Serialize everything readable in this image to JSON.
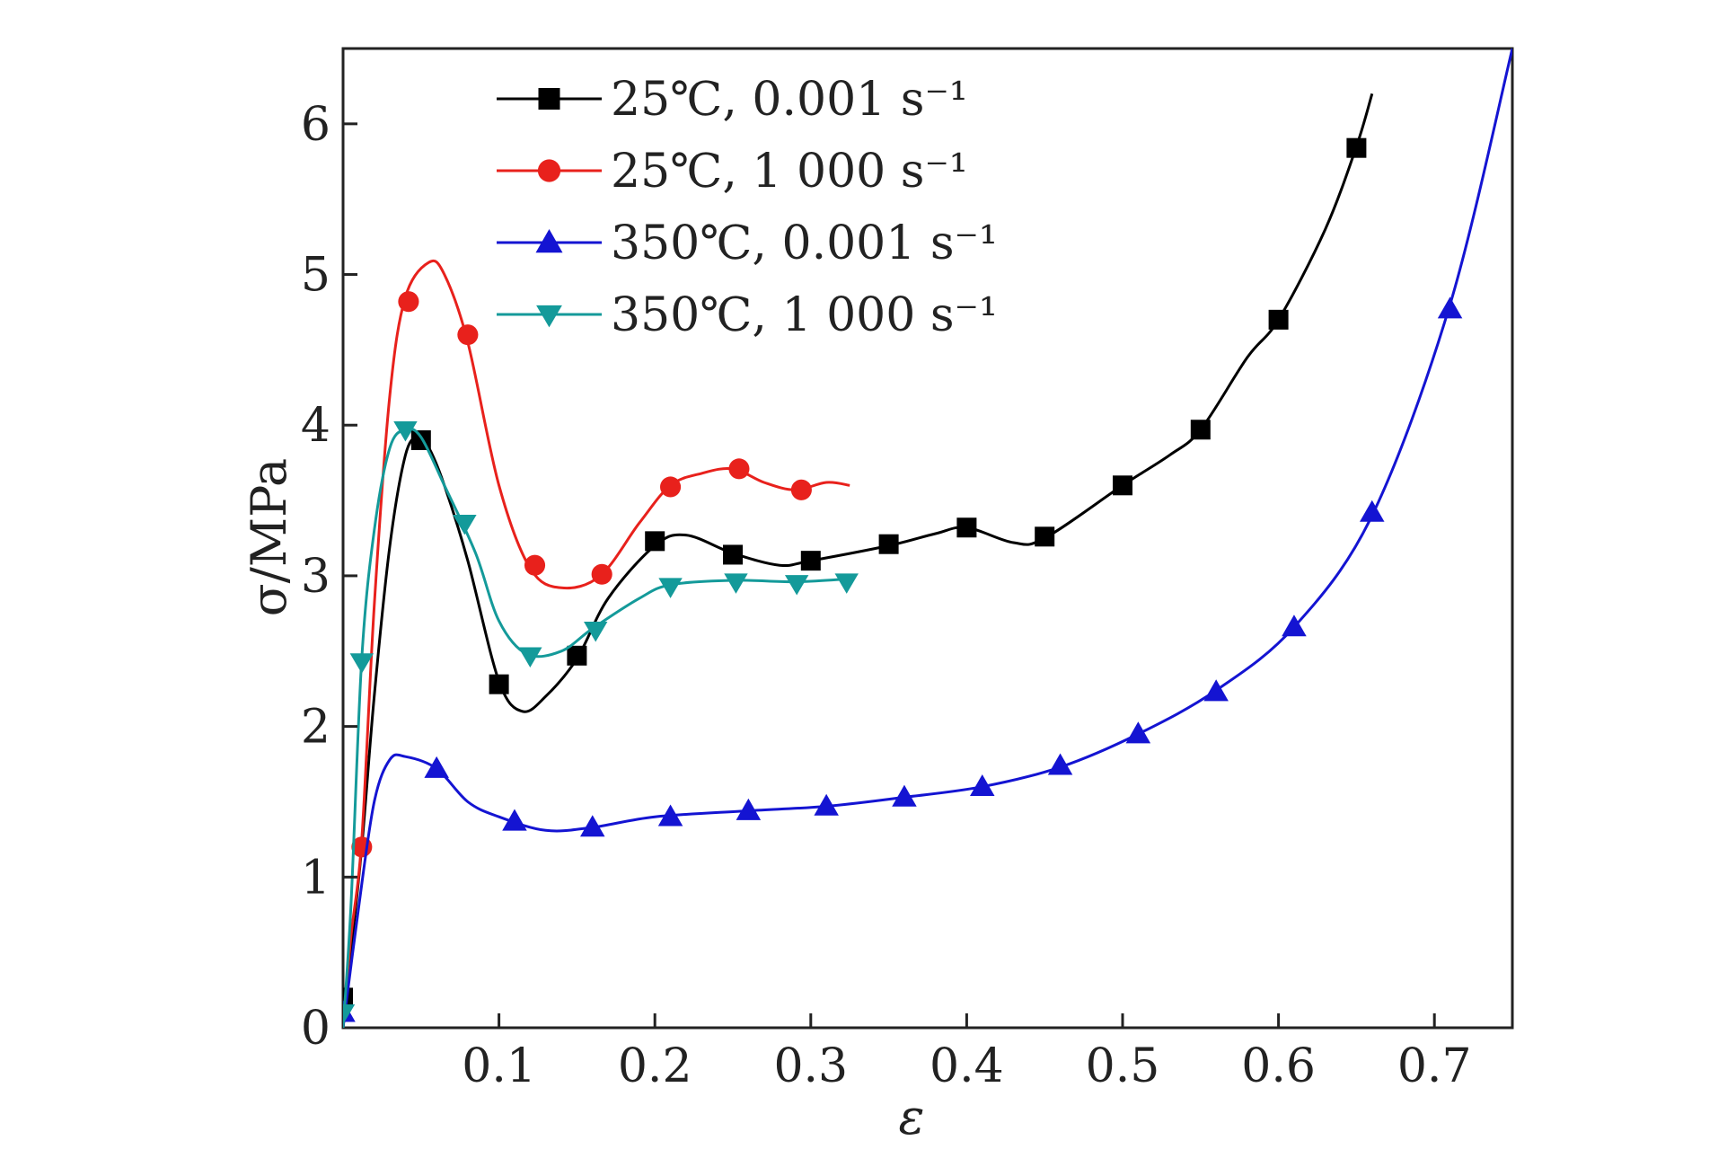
{
  "chart_data": {
    "type": "line",
    "xlabel": "ε",
    "ylabel": "σ/MPa",
    "xlim": [
      0,
      0.75
    ],
    "ylim": [
      0,
      6.5
    ],
    "x_ticks": [
      0.1,
      0.2,
      0.3,
      0.4,
      0.5,
      0.6,
      0.7
    ],
    "x_tick_labels": [
      "0.1",
      "0.2",
      "0.3",
      "0.4",
      "0.5",
      "0.6",
      "0.7"
    ],
    "y_ticks": [
      0,
      1,
      2,
      3,
      4,
      5,
      6
    ],
    "y_tick_labels": [
      "0",
      "1",
      "2",
      "3",
      "4",
      "5",
      "6"
    ],
    "grid": false,
    "legend_position": "top-center",
    "series": [
      {
        "name": "25℃, 0.001 s⁻¹",
        "color": "#000000",
        "marker": "square",
        "curve": [
          [
            0,
            0
          ],
          [
            0.005,
            0.5
          ],
          [
            0.012,
            1.2
          ],
          [
            0.02,
            2.2
          ],
          [
            0.03,
            3.2
          ],
          [
            0.04,
            3.8
          ],
          [
            0.048,
            3.92
          ],
          [
            0.055,
            3.85
          ],
          [
            0.065,
            3.6
          ],
          [
            0.08,
            3.1
          ],
          [
            0.1,
            2.3
          ],
          [
            0.115,
            2.1
          ],
          [
            0.13,
            2.2
          ],
          [
            0.15,
            2.45
          ],
          [
            0.17,
            2.85
          ],
          [
            0.2,
            3.2
          ],
          [
            0.22,
            3.27
          ],
          [
            0.25,
            3.15
          ],
          [
            0.28,
            3.07
          ],
          [
            0.3,
            3.1
          ],
          [
            0.35,
            3.2
          ],
          [
            0.38,
            3.28
          ],
          [
            0.4,
            3.32
          ],
          [
            0.43,
            3.22
          ],
          [
            0.45,
            3.25
          ],
          [
            0.5,
            3.6
          ],
          [
            0.53,
            3.8
          ],
          [
            0.55,
            3.97
          ],
          [
            0.58,
            4.45
          ],
          [
            0.6,
            4.7
          ],
          [
            0.63,
            5.3
          ],
          [
            0.65,
            5.85
          ],
          [
            0.66,
            6.2
          ]
        ],
        "markers": [
          [
            0,
            0.2
          ],
          [
            0.05,
            3.9
          ],
          [
            0.1,
            2.28
          ],
          [
            0.15,
            2.47
          ],
          [
            0.2,
            3.23
          ],
          [
            0.25,
            3.14
          ],
          [
            0.3,
            3.1
          ],
          [
            0.35,
            3.21
          ],
          [
            0.4,
            3.32
          ],
          [
            0.45,
            3.26
          ],
          [
            0.5,
            3.6
          ],
          [
            0.55,
            3.97
          ],
          [
            0.6,
            4.7
          ],
          [
            0.65,
            5.84
          ]
        ]
      },
      {
        "name": "25℃, 1 000 s⁻¹",
        "color": "#e8211c",
        "marker": "circle",
        "curve": [
          [
            0,
            0
          ],
          [
            0.005,
            0.6
          ],
          [
            0.012,
            1.25
          ],
          [
            0.02,
            2.8
          ],
          [
            0.03,
            4.2
          ],
          [
            0.04,
            4.85
          ],
          [
            0.055,
            5.08
          ],
          [
            0.065,
            5.0
          ],
          [
            0.08,
            4.55
          ],
          [
            0.1,
            3.6
          ],
          [
            0.12,
            3.05
          ],
          [
            0.14,
            2.92
          ],
          [
            0.165,
            3.0
          ],
          [
            0.19,
            3.35
          ],
          [
            0.21,
            3.6
          ],
          [
            0.23,
            3.68
          ],
          [
            0.25,
            3.71
          ],
          [
            0.27,
            3.62
          ],
          [
            0.29,
            3.57
          ],
          [
            0.31,
            3.62
          ],
          [
            0.325,
            3.6
          ]
        ],
        "markers": [
          [
            0.012,
            1.2
          ],
          [
            0.042,
            4.82
          ],
          [
            0.08,
            4.6
          ],
          [
            0.123,
            3.07
          ],
          [
            0.166,
            3.01
          ],
          [
            0.21,
            3.59
          ],
          [
            0.254,
            3.71
          ],
          [
            0.294,
            3.57
          ]
        ]
      },
      {
        "name": "350℃, 0.001 s⁻¹",
        "color": "#1414d2",
        "marker": "triangle-up",
        "curve": [
          [
            0,
            0
          ],
          [
            0.01,
            0.8
          ],
          [
            0.02,
            1.5
          ],
          [
            0.03,
            1.78
          ],
          [
            0.04,
            1.8
          ],
          [
            0.06,
            1.72
          ],
          [
            0.08,
            1.5
          ],
          [
            0.1,
            1.4
          ],
          [
            0.13,
            1.31
          ],
          [
            0.16,
            1.33
          ],
          [
            0.2,
            1.4
          ],
          [
            0.26,
            1.44
          ],
          [
            0.31,
            1.47
          ],
          [
            0.36,
            1.53
          ],
          [
            0.41,
            1.6
          ],
          [
            0.46,
            1.73
          ],
          [
            0.51,
            1.95
          ],
          [
            0.56,
            2.24
          ],
          [
            0.61,
            2.66
          ],
          [
            0.66,
            3.4
          ],
          [
            0.71,
            4.8
          ],
          [
            0.75,
            6.5
          ]
        ],
        "markers": [
          [
            0,
            0.1
          ],
          [
            0.06,
            1.72
          ],
          [
            0.11,
            1.37
          ],
          [
            0.16,
            1.33
          ],
          [
            0.21,
            1.4
          ],
          [
            0.26,
            1.44
          ],
          [
            0.31,
            1.47
          ],
          [
            0.36,
            1.53
          ],
          [
            0.41,
            1.6
          ],
          [
            0.46,
            1.74
          ],
          [
            0.51,
            1.95
          ],
          [
            0.56,
            2.23
          ],
          [
            0.61,
            2.66
          ],
          [
            0.66,
            3.42
          ],
          [
            0.71,
            4.77
          ]
        ]
      },
      {
        "name": "350℃, 1 000 s⁻¹",
        "color": "#149a9a",
        "marker": "triangle-down",
        "curve": [
          [
            0,
            0
          ],
          [
            0.005,
            0.8
          ],
          [
            0.012,
            2.45
          ],
          [
            0.02,
            3.3
          ],
          [
            0.03,
            3.85
          ],
          [
            0.04,
            3.97
          ],
          [
            0.05,
            3.92
          ],
          [
            0.065,
            3.6
          ],
          [
            0.085,
            3.15
          ],
          [
            0.1,
            2.7
          ],
          [
            0.118,
            2.48
          ],
          [
            0.14,
            2.5
          ],
          [
            0.16,
            2.65
          ],
          [
            0.19,
            2.85
          ],
          [
            0.21,
            2.94
          ],
          [
            0.25,
            2.97
          ],
          [
            0.29,
            2.96
          ],
          [
            0.325,
            2.98
          ]
        ],
        "markers": [
          [
            0,
            0.1
          ],
          [
            0.012,
            2.43
          ],
          [
            0.04,
            3.97
          ],
          [
            0.078,
            3.35
          ],
          [
            0.12,
            2.47
          ],
          [
            0.162,
            2.64
          ],
          [
            0.21,
            2.93
          ],
          [
            0.252,
            2.96
          ],
          [
            0.291,
            2.95
          ],
          [
            0.323,
            2.96
          ]
        ]
      }
    ]
  }
}
